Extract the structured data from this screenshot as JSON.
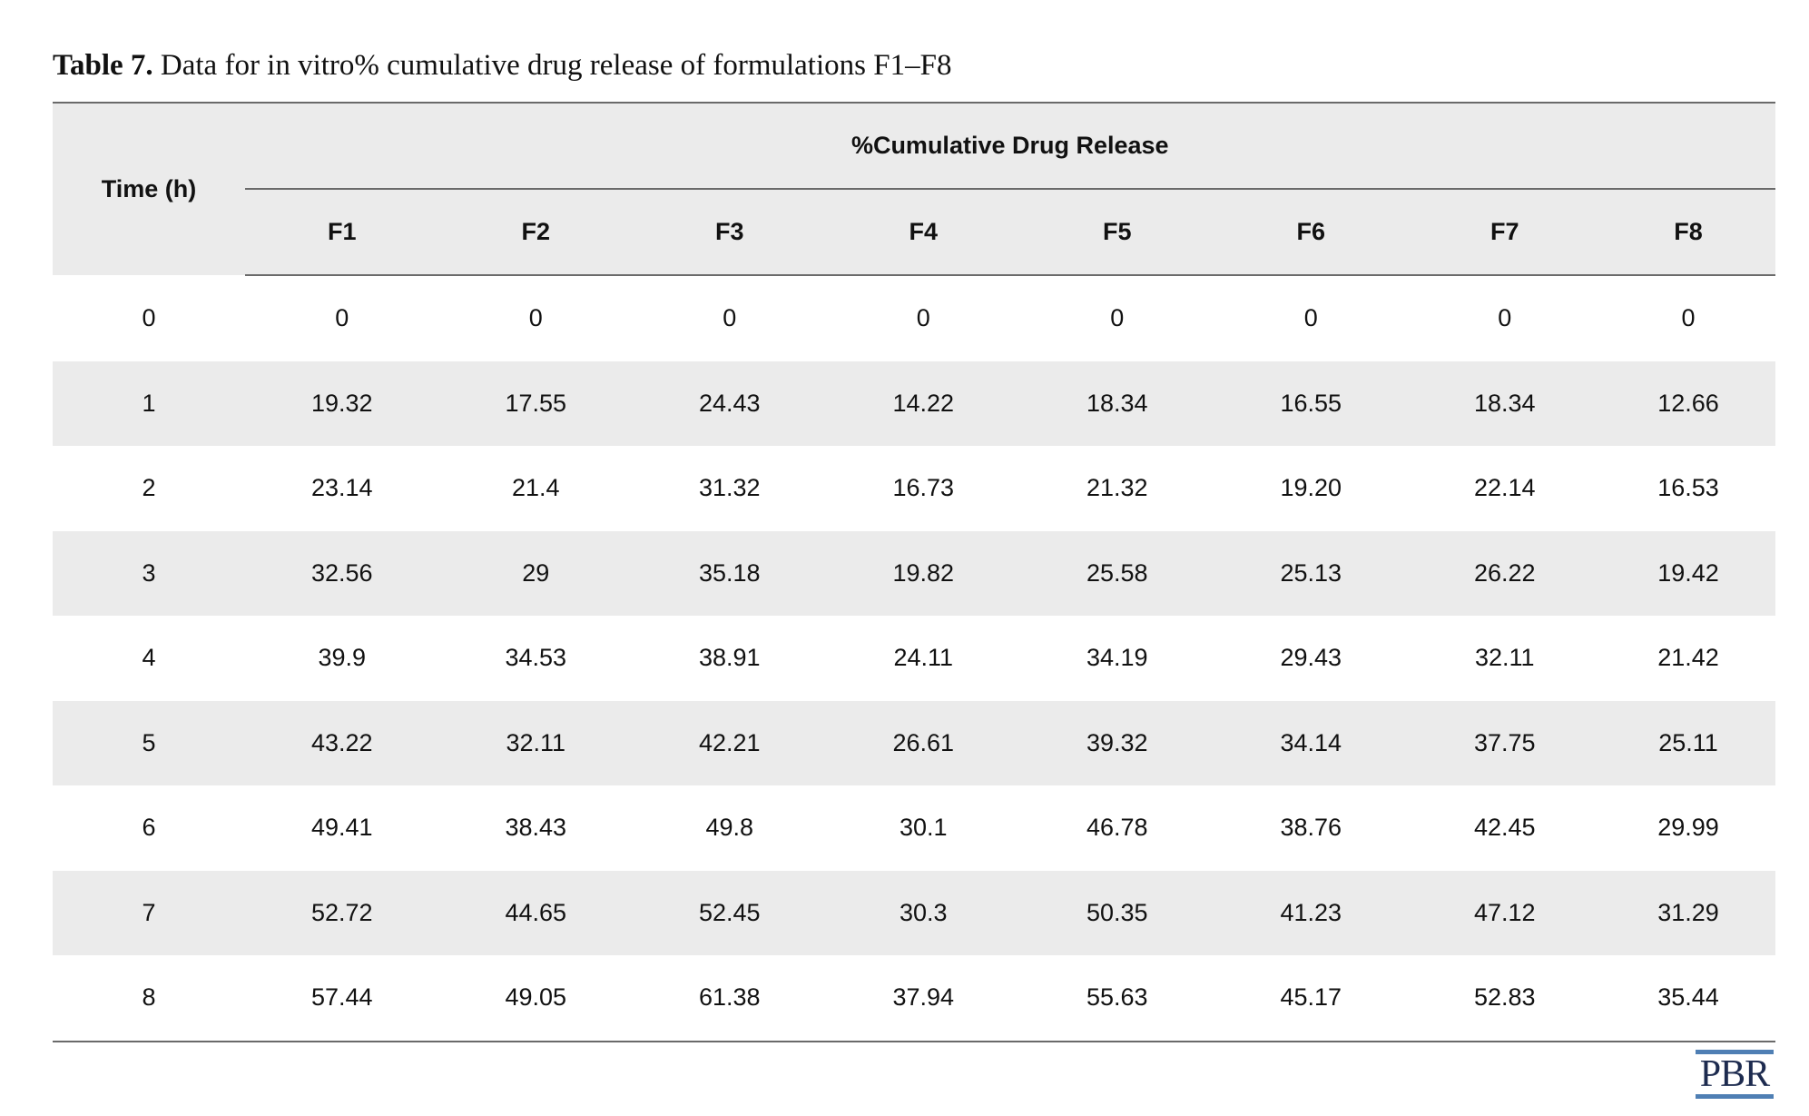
{
  "caption": {
    "label": "Table 7.",
    "text": "Data for in vitro% cumulative drug release of formulations F1–F8"
  },
  "table": {
    "time_header": "Time (h)",
    "group_header": "%Cumulative Drug Release",
    "columns": [
      "F1",
      "F2",
      "F3",
      "F4",
      "F5",
      "F6",
      "F7",
      "F8"
    ],
    "rows": [
      [
        "0",
        "0",
        "0",
        "0",
        "0",
        "0",
        "0",
        "0",
        "0"
      ],
      [
        "1",
        "19.32",
        "17.55",
        "24.43",
        "14.22",
        "18.34",
        "16.55",
        "18.34",
        "12.66"
      ],
      [
        "2",
        "23.14",
        "21.4",
        "31.32",
        "16.73",
        "21.32",
        "19.20",
        "22.14",
        "16.53"
      ],
      [
        "3",
        "32.56",
        "29",
        "35.18",
        "19.82",
        "25.58",
        "25.13",
        "26.22",
        "19.42"
      ],
      [
        "4",
        "39.9",
        "34.53",
        "38.91",
        "24.11",
        "34.19",
        "29.43",
        "32.11",
        "21.42"
      ],
      [
        "5",
        "43.22",
        "32.11",
        "42.21",
        "26.61",
        "39.32",
        "34.14",
        "37.75",
        "25.11"
      ],
      [
        "6",
        "49.41",
        "38.43",
        "49.8",
        "30.1",
        "46.78",
        "38.76",
        "42.45",
        "29.99"
      ],
      [
        "7",
        "52.72",
        "44.65",
        "52.45",
        "30.3",
        "50.35",
        "41.23",
        "47.12",
        "31.29"
      ],
      [
        "8",
        "57.44",
        "49.05",
        "61.38",
        "37.94",
        "55.63",
        "45.17",
        "52.83",
        "35.44"
      ]
    ]
  },
  "logo": {
    "text": "PBR",
    "bar_color": "#4f7fb4",
    "text_color": "#1d2b4f"
  }
}
